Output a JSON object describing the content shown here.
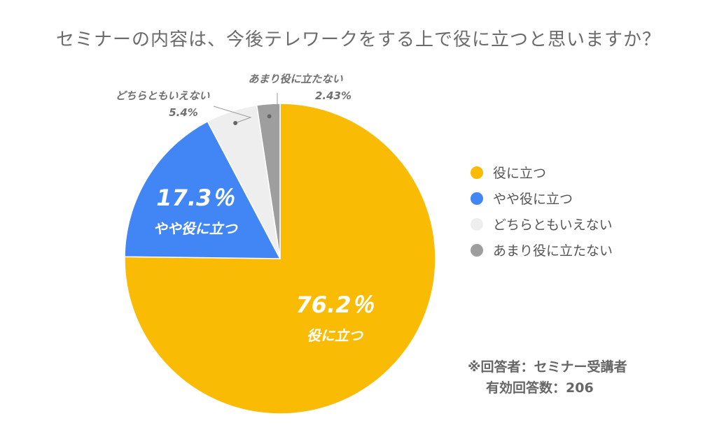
{
  "chart_data": {
    "type": "pie",
    "title": "セミナーの内容は、今後テレワークをする上で役に立つと思いますか？",
    "slices": [
      {
        "label": "役に立つ",
        "value": 76.2,
        "value_label": "76.2％",
        "color": "#FABB05"
      },
      {
        "label": "やや役に立つ",
        "value": 17.3,
        "value_label": "17.3％",
        "color": "#4285F4"
      },
      {
        "label": "どちらともいえない",
        "value": 5.4,
        "value_label": "5.4%",
        "color": "#EEEEEE"
      },
      {
        "label": "あまり役に立たない",
        "value": 2.43,
        "value_label": "2.43%",
        "color": "#9E9E9E"
      }
    ],
    "legend": {
      "position": "right"
    }
  },
  "note": {
    "line1": "※回答者：セミナー受講者",
    "line2": "有効回答数：206"
  }
}
